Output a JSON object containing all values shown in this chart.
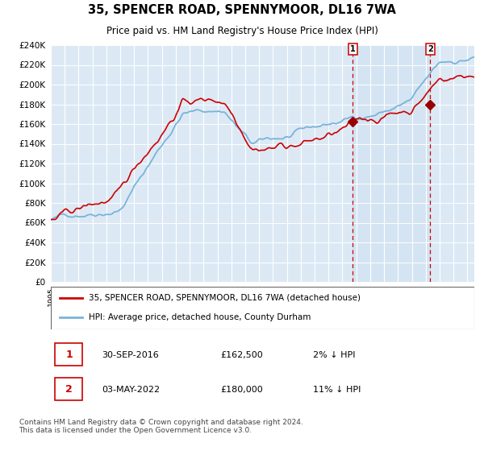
{
  "title": "35, SPENCER ROAD, SPENNYMOOR, DL16 7WA",
  "subtitle": "Price paid vs. HM Land Registry's House Price Index (HPI)",
  "ylim": [
    0,
    240000
  ],
  "plot_bg_color": "#dce9f5",
  "grid_color": "#ffffff",
  "hpi_line_color": "#7ab3d8",
  "price_line_color": "#cc0000",
  "marker_color": "#990000",
  "vline_color": "#cc0000",
  "annotation_box_color": "#cc0000",
  "sale1_date": 2016.75,
  "sale1_price": 162500,
  "sale2_date": 2022.33,
  "sale2_price": 180000,
  "footer_text": "Contains HM Land Registry data © Crown copyright and database right 2024.\nThis data is licensed under the Open Government Licence v3.0.",
  "legend_entry1": "35, SPENCER ROAD, SPENNYMOOR, DL16 7WA (detached house)",
  "legend_entry2": "HPI: Average price, detached house, County Durham"
}
